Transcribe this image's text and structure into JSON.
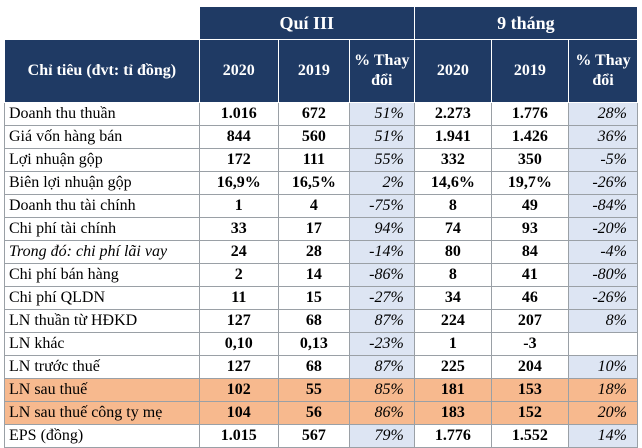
{
  "header": {
    "group_q3": "Quí III",
    "group_9m": "9 tháng",
    "label_col": "Chỉ tiêu (đvt: tỉ đồng)",
    "cols": [
      "2020",
      "2019",
      "% Thay đổi",
      "2020",
      "2019",
      "% Thay đổi"
    ]
  },
  "rows": [
    {
      "label": "Doanh thu thuần",
      "q20": "1.016",
      "q19": "672",
      "qpct": "51%",
      "m20": "2.273",
      "m19": "1.776",
      "mpct": "28%"
    },
    {
      "label": "Giá vốn hàng bán",
      "q20": "844",
      "q19": "560",
      "qpct": "51%",
      "m20": "1.941",
      "m19": "1.426",
      "mpct": "36%"
    },
    {
      "label": "Lợi nhuận gộp",
      "q20": "172",
      "q19": "111",
      "qpct": "55%",
      "m20": "332",
      "m19": "350",
      "mpct": "-5%"
    },
    {
      "label": "Biên lợi nhuận gộp",
      "q20": "16,9%",
      "q19": "16,5%",
      "qpct": "2%",
      "m20": "14,6%",
      "m19": "19,7%",
      "mpct": "-26%"
    },
    {
      "label": "Doanh thu tài chính",
      "q20": "1",
      "q19": "4",
      "qpct": "-75%",
      "m20": "8",
      "m19": "49",
      "mpct": "-84%"
    },
    {
      "label": "Chi phí tài chính",
      "q20": "33",
      "q19": "17",
      "qpct": "94%",
      "m20": "74",
      "m19": "93",
      "mpct": "-20%"
    },
    {
      "label": "Trong đó: chi phí lãi vay",
      "q20": "24",
      "q19": "28",
      "qpct": "-14%",
      "m20": "80",
      "m19": "84",
      "mpct": "-4%"
    },
    {
      "label": "Chi phí bán hàng",
      "q20": "2",
      "q19": "14",
      "qpct": "-86%",
      "m20": "8",
      "m19": "41",
      "mpct": "-80%"
    },
    {
      "label": "Chi phí QLDN",
      "q20": "11",
      "q19": "15",
      "qpct": "-27%",
      "m20": "34",
      "m19": "46",
      "mpct": "-26%"
    },
    {
      "label": "LN thuần từ HĐKD",
      "q20": "127",
      "q19": "68",
      "qpct": "87%",
      "m20": "224",
      "m19": "207",
      "mpct": "8%"
    },
    {
      "label": "LN khác",
      "q20": "0,10",
      "q19": "0,13",
      "qpct": "-23%",
      "m20": "1",
      "m19": "-3",
      "mpct": ""
    },
    {
      "label": "LN trước thuế",
      "q20": "127",
      "q19": "68",
      "qpct": "87%",
      "m20": "225",
      "m19": "204",
      "mpct": "10%"
    },
    {
      "label": "LN sau thuế",
      "q20": "102",
      "q19": "55",
      "qpct": "85%",
      "m20": "181",
      "m19": "153",
      "mpct": "18%"
    },
    {
      "label": "LN sau thuế công ty mẹ",
      "q20": "104",
      "q19": "56",
      "qpct": "86%",
      "m20": "183",
      "m19": "152",
      "mpct": "20%"
    },
    {
      "label": "EPS (đồng)",
      "q20": "1.015",
      "q19": "567",
      "qpct": "79%",
      "m20": "1.776",
      "m19": "1.552",
      "mpct": "14%"
    }
  ],
  "highlight_color": "#f7b98e",
  "header_color": "#1f3a64",
  "pct_cell_color": "#dde5f3"
}
